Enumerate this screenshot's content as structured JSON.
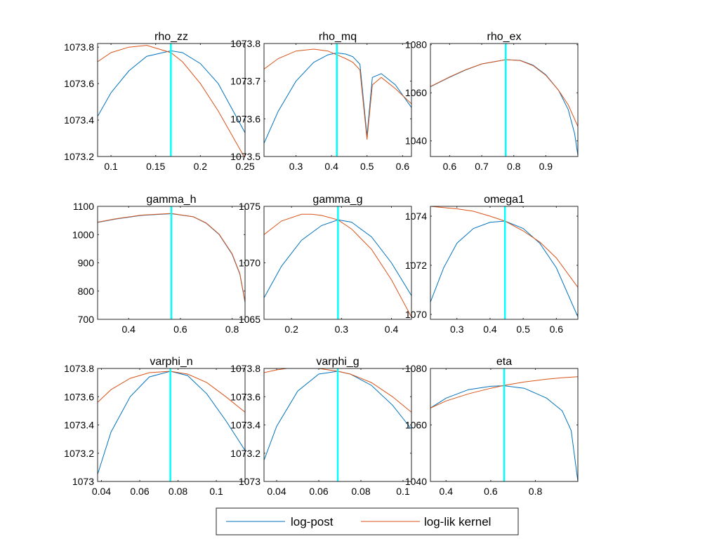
{
  "figure": {
    "colors": {
      "log_post": "#0072BD",
      "log_lik": "#D95319",
      "mode_line": "#00FFFF",
      "axes": "#262626",
      "background": "#FFFFFF"
    },
    "legend": {
      "placement": "bottom-center",
      "entries": [
        "log-post",
        "log-lik kernel"
      ]
    }
  },
  "chart_data": [
    {
      "type": "line",
      "title": "rho_zz",
      "xlim": [
        0.085,
        0.25
      ],
      "ylim": [
        1073.2,
        1073.82
      ],
      "xticks": [
        0.1,
        0.15,
        0.2,
        0.25
      ],
      "xtick_labels": [
        "0.1",
        "0.15",
        "0.2",
        "0.25"
      ],
      "yticks": [
        1073.2,
        1073.4,
        1073.6,
        1073.8
      ],
      "ytick_labels": [
        "1073.2",
        "1073.4",
        "1073.6",
        "1073.8"
      ],
      "mode_x": 0.167,
      "series": [
        {
          "name": "log-post",
          "x": [
            0.085,
            0.1,
            0.12,
            0.14,
            0.167,
            0.18,
            0.2,
            0.22,
            0.25
          ],
          "y": [
            1073.42,
            1073.55,
            1073.67,
            1073.75,
            1073.78,
            1073.77,
            1073.71,
            1073.6,
            1073.33
          ]
        },
        {
          "name": "log-lik kernel",
          "x": [
            0.085,
            0.1,
            0.12,
            0.14,
            0.167,
            0.18,
            0.2,
            0.22,
            0.25
          ],
          "y": [
            1073.72,
            1073.77,
            1073.8,
            1073.81,
            1073.77,
            1073.72,
            1073.6,
            1073.45,
            1073.19
          ]
        }
      ]
    },
    {
      "type": "line",
      "title": "rho_mq",
      "xlim": [
        0.21,
        0.625
      ],
      "ylim": [
        1073.5,
        1073.8
      ],
      "xticks": [
        0.3,
        0.4,
        0.5,
        0.6
      ],
      "xtick_labels": [
        "0.3",
        "0.4",
        "0.5",
        "0.6"
      ],
      "yticks": [
        1073.5,
        1073.6,
        1073.7,
        1073.8
      ],
      "ytick_labels": [
        "1073.5",
        "1073.6",
        "1073.7",
        "1073.8"
      ],
      "mode_x": 0.415,
      "series": [
        {
          "name": "log-post",
          "x": [
            0.21,
            0.25,
            0.3,
            0.35,
            0.39,
            0.415,
            0.44,
            0.46,
            0.48,
            0.5,
            0.515,
            0.54,
            0.58,
            0.625
          ],
          "y": [
            1073.535,
            1073.62,
            1073.7,
            1073.75,
            1073.77,
            1073.775,
            1073.772,
            1073.765,
            1073.745,
            1073.555,
            1073.71,
            1073.72,
            1073.69,
            1073.63
          ]
        },
        {
          "name": "log-lik kernel",
          "x": [
            0.21,
            0.25,
            0.3,
            0.35,
            0.39,
            0.415,
            0.44,
            0.46,
            0.48,
            0.5,
            0.515,
            0.54,
            0.58,
            0.625
          ],
          "y": [
            1073.732,
            1073.76,
            1073.78,
            1073.785,
            1073.78,
            1073.77,
            1073.76,
            1073.75,
            1073.73,
            1073.545,
            1073.69,
            1073.71,
            1073.68,
            1073.64
          ]
        }
      ]
    },
    {
      "type": "line",
      "title": "rho_ex",
      "xlim": [
        0.54,
        1.0
      ],
      "ylim": [
        1033.5,
        1080.5
      ],
      "xticks": [
        0.6,
        0.7,
        0.8,
        0.9
      ],
      "xtick_labels": [
        "0.6",
        "0.7",
        "0.8",
        "0.9"
      ],
      "yticks": [
        1040,
        1060,
        1080
      ],
      "ytick_labels": [
        "1040",
        "1060",
        "1080"
      ],
      "mode_x": 0.775,
      "series": [
        {
          "name": "log-post",
          "x": [
            0.54,
            0.6,
            0.65,
            0.7,
            0.775,
            0.82,
            0.86,
            0.9,
            0.94,
            0.97,
            0.99,
            1.0
          ],
          "y": [
            1062.5,
            1066.5,
            1069.5,
            1072.0,
            1073.8,
            1073.5,
            1071.5,
            1067.5,
            1061.0,
            1053.0,
            1043.0,
            1034.0
          ]
        },
        {
          "name": "log-lik kernel",
          "x": [
            0.54,
            0.6,
            0.65,
            0.7,
            0.775,
            0.82,
            0.86,
            0.9,
            0.94,
            0.97,
            0.99,
            1.0
          ],
          "y": [
            1062.6,
            1066.6,
            1069.6,
            1072.0,
            1073.8,
            1073.4,
            1071.3,
            1067.3,
            1061.0,
            1055.0,
            1049.0,
            1046.0
          ]
        }
      ]
    },
    {
      "type": "line",
      "title": "gamma_h",
      "xlim": [
        0.28,
        0.85
      ],
      "ylim": [
        700,
        1100
      ],
      "xticks": [
        0.4,
        0.6,
        0.8
      ],
      "xtick_labels": [
        "0.4",
        "0.6",
        "0.8"
      ],
      "yticks": [
        700,
        800,
        900,
        1000,
        1100
      ],
      "ytick_labels": [
        "700",
        "800",
        "900",
        "1000",
        "1100"
      ],
      "mode_x": 0.565,
      "series": [
        {
          "name": "log-post",
          "x": [
            0.28,
            0.35,
            0.45,
            0.565,
            0.65,
            0.7,
            0.75,
            0.8,
            0.83,
            0.85
          ],
          "y": [
            1043,
            1055,
            1068,
            1074,
            1063,
            1040,
            1000,
            930,
            860,
            760
          ]
        },
        {
          "name": "log-lik kernel",
          "x": [
            0.28,
            0.35,
            0.45,
            0.565,
            0.65,
            0.7,
            0.75,
            0.8,
            0.83,
            0.85
          ],
          "y": [
            1044,
            1056,
            1069,
            1075,
            1063,
            1041,
            1001,
            932,
            862,
            762
          ]
        }
      ]
    },
    {
      "type": "line",
      "title": "gamma_g",
      "xlim": [
        0.145,
        0.44
      ],
      "ylim": [
        1065,
        1075
      ],
      "xticks": [
        0.2,
        0.3,
        0.4
      ],
      "xtick_labels": [
        "0.2",
        "0.3",
        "0.4"
      ],
      "yticks": [
        1065,
        1070,
        1075
      ],
      "ytick_labels": [
        "1065",
        "1070",
        "1075"
      ],
      "mode_x": 0.293,
      "series": [
        {
          "name": "log-post",
          "x": [
            0.145,
            0.18,
            0.22,
            0.26,
            0.293,
            0.32,
            0.36,
            0.4,
            0.44
          ],
          "y": [
            1066.9,
            1069.7,
            1072.0,
            1073.3,
            1073.8,
            1073.6,
            1072.3,
            1070.0,
            1067.1
          ]
        },
        {
          "name": "log-lik kernel",
          "x": [
            0.145,
            0.18,
            0.22,
            0.24,
            0.26,
            0.293,
            0.32,
            0.36,
            0.4,
            0.44
          ],
          "y": [
            1072.5,
            1073.7,
            1074.3,
            1074.3,
            1074.2,
            1073.8,
            1073.0,
            1071.2,
            1068.5,
            1065.2
          ]
        }
      ]
    },
    {
      "type": "line",
      "title": "omega1",
      "xlim": [
        0.22,
        0.665
      ],
      "ylim": [
        1069.8,
        1074.4
      ],
      "xticks": [
        0.3,
        0.4,
        0.5,
        0.6
      ],
      "xtick_labels": [
        "0.3",
        "0.4",
        "0.5",
        "0.6"
      ],
      "yticks": [
        1070,
        1072,
        1074
      ],
      "ytick_labels": [
        "1070",
        "1072",
        "1074"
      ],
      "mode_x": 0.445,
      "series": [
        {
          "name": "log-post",
          "x": [
            0.22,
            0.26,
            0.3,
            0.35,
            0.4,
            0.445,
            0.5,
            0.55,
            0.6,
            0.665
          ],
          "y": [
            1070.5,
            1071.9,
            1072.9,
            1073.5,
            1073.75,
            1073.8,
            1073.5,
            1072.9,
            1071.9,
            1069.9
          ]
        },
        {
          "name": "log-lik kernel",
          "x": [
            0.22,
            0.26,
            0.3,
            0.35,
            0.4,
            0.445,
            0.5,
            0.55,
            0.6,
            0.665
          ],
          "y": [
            1074.4,
            1074.35,
            1074.3,
            1074.2,
            1074.0,
            1073.8,
            1073.4,
            1072.95,
            1072.3,
            1071.1
          ]
        }
      ]
    },
    {
      "type": "line",
      "title": "varphi_n",
      "xlim": [
        0.038,
        0.115
      ],
      "ylim": [
        1073,
        1073.8
      ],
      "xticks": [
        0.04,
        0.06,
        0.08,
        0.1
      ],
      "xtick_labels": [
        "0.04",
        "0.06",
        "0.08",
        "0.1"
      ],
      "yticks": [
        1073,
        1073.2,
        1073.4,
        1073.6,
        1073.8
      ],
      "ytick_labels": [
        "1073",
        "1073.2",
        "1073.4",
        "1073.6",
        "1073.8"
      ],
      "mode_x": 0.076,
      "series": [
        {
          "name": "log-post",
          "x": [
            0.038,
            0.045,
            0.055,
            0.065,
            0.076,
            0.085,
            0.095,
            0.105,
            0.115
          ],
          "y": [
            1073.05,
            1073.35,
            1073.6,
            1073.74,
            1073.78,
            1073.75,
            1073.62,
            1073.43,
            1073.22
          ]
        },
        {
          "name": "log-lik kernel",
          "x": [
            0.038,
            0.045,
            0.055,
            0.065,
            0.076,
            0.085,
            0.095,
            0.105,
            0.115
          ],
          "y": [
            1073.56,
            1073.65,
            1073.73,
            1073.77,
            1073.78,
            1073.76,
            1073.7,
            1073.6,
            1073.49
          ]
        }
      ]
    },
    {
      "type": "line",
      "title": "varphi_g",
      "xlim": [
        0.034,
        0.104
      ],
      "ylim": [
        1073,
        1073.8
      ],
      "xticks": [
        0.04,
        0.06,
        0.08,
        0.1
      ],
      "xtick_labels": [
        "0.04",
        "0.06",
        "0.08",
        "0.1"
      ],
      "yticks": [
        1073,
        1073.2,
        1073.4,
        1073.6,
        1073.8
      ],
      "ytick_labels": [
        "1073",
        "1073.2",
        "1073.4",
        "1073.6",
        "1073.8"
      ],
      "mode_x": 0.069,
      "series": [
        {
          "name": "log-post",
          "x": [
            0.034,
            0.04,
            0.05,
            0.06,
            0.069,
            0.075,
            0.085,
            0.095,
            0.104
          ],
          "y": [
            1073.15,
            1073.39,
            1073.64,
            1073.76,
            1073.78,
            1073.76,
            1073.68,
            1073.54,
            1073.37
          ]
        },
        {
          "name": "log-lik kernel",
          "x": [
            0.034,
            0.04,
            0.05,
            0.055,
            0.06,
            0.069,
            0.075,
            0.085,
            0.095,
            0.104
          ],
          "y": [
            1073.77,
            1073.79,
            1073.81,
            1073.81,
            1073.8,
            1073.78,
            1073.76,
            1073.7,
            1073.6,
            1073.49
          ]
        }
      ]
    },
    {
      "type": "line",
      "title": "eta",
      "xlim": [
        0.33,
        0.99
      ],
      "ylim": [
        1040,
        1080
      ],
      "xticks": [
        0.4,
        0.6,
        0.8
      ],
      "xtick_labels": [
        "0.4",
        "0.6",
        "0.8"
      ],
      "yticks": [
        1040,
        1060,
        1080
      ],
      "ytick_labels": [
        "1040",
        "1060",
        "1080"
      ],
      "mode_x": 0.66,
      "series": [
        {
          "name": "log-post",
          "x": [
            0.33,
            0.4,
            0.5,
            0.6,
            0.66,
            0.75,
            0.85,
            0.92,
            0.96,
            0.99
          ],
          "y": [
            1066,
            1069.5,
            1072.5,
            1073.7,
            1073.9,
            1073,
            1069.5,
            1065,
            1058,
            1040
          ]
        },
        {
          "name": "log-lik kernel",
          "x": [
            0.33,
            0.4,
            0.5,
            0.6,
            0.66,
            0.75,
            0.85,
            0.92,
            0.99
          ],
          "y": [
            1066,
            1068.5,
            1071,
            1073,
            1074,
            1075.2,
            1076.2,
            1076.7,
            1077.1
          ]
        }
      ]
    }
  ]
}
